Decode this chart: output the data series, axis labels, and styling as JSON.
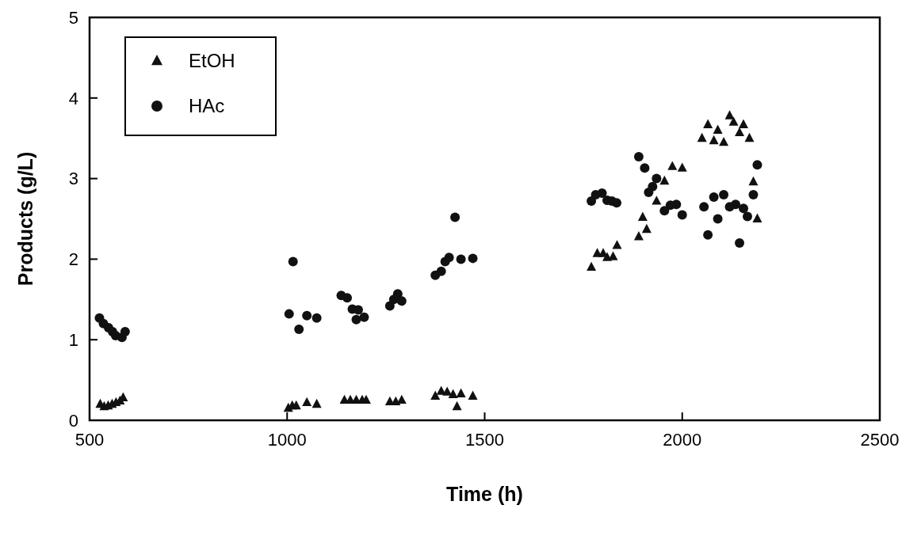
{
  "chart_data": {
    "type": "scatter",
    "xlabel": "Time  (h)",
    "ylabel": "Products  (g/L)",
    "xlim": [
      500,
      2500
    ],
    "ylim": [
      0,
      5
    ],
    "xticks": [
      500,
      1000,
      1500,
      2000,
      2500
    ],
    "yticks": [
      0,
      1,
      2,
      3,
      4,
      5
    ],
    "grid": false,
    "legend": "top left",
    "series": [
      {
        "name": "EtOH",
        "color": "#111111",
        "marker": "triangle",
        "x": [
          527,
          537,
          547,
          557,
          567,
          577,
          585,
          1003,
          1013,
          1023,
          1050,
          1075,
          1145,
          1160,
          1175,
          1190,
          1200,
          1260,
          1275,
          1290,
          1375,
          1390,
          1405,
          1420,
          1430,
          1440,
          1470,
          1770,
          1785,
          1800,
          1810,
          1825,
          1835,
          1890,
          1900,
          1910,
          1935,
          1955,
          1975,
          2000,
          2050,
          2065,
          2080,
          2090,
          2105,
          2120,
          2130,
          2145,
          2155,
          2170,
          2180,
          2190
        ],
        "values": [
          0.2,
          0.17,
          0.18,
          0.2,
          0.22,
          0.24,
          0.28,
          0.15,
          0.18,
          0.18,
          0.22,
          0.2,
          0.25,
          0.25,
          0.25,
          0.25,
          0.25,
          0.23,
          0.23,
          0.25,
          0.3,
          0.36,
          0.35,
          0.32,
          0.17,
          0.33,
          0.3,
          1.9,
          2.07,
          2.07,
          2.02,
          2.03,
          2.17,
          2.28,
          2.52,
          2.37,
          2.72,
          2.97,
          3.15,
          3.13,
          3.5,
          3.67,
          3.47,
          3.6,
          3.45,
          3.78,
          3.7,
          3.57,
          3.67,
          3.5,
          2.96,
          2.5
        ]
      },
      {
        "name": "HAc",
        "color": "#111111",
        "marker": "circle",
        "x": [
          525,
          535,
          548,
          558,
          566,
          582,
          590,
          1005,
          1015,
          1030,
          1050,
          1075,
          1137,
          1152,
          1165,
          1175,
          1180,
          1195,
          1260,
          1270,
          1280,
          1290,
          1375,
          1390,
          1400,
          1410,
          1425,
          1440,
          1470,
          1770,
          1781,
          1797,
          1810,
          1822,
          1834,
          1890,
          1905,
          1915,
          1925,
          1935,
          1955,
          1970,
          1985,
          2000,
          2055,
          2065,
          2080,
          2090,
          2105,
          2120,
          2135,
          2145,
          2155,
          2165,
          2180,
          2190
        ],
        "values": [
          1.27,
          1.2,
          1.15,
          1.1,
          1.05,
          1.03,
          1.1,
          1.32,
          1.97,
          1.13,
          1.3,
          1.27,
          1.55,
          1.52,
          1.38,
          1.25,
          1.37,
          1.28,
          1.42,
          1.5,
          1.57,
          1.48,
          1.8,
          1.85,
          1.97,
          2.02,
          2.52,
          2.0,
          2.01,
          2.72,
          2.8,
          2.82,
          2.73,
          2.72,
          2.7,
          3.27,
          3.13,
          2.83,
          2.9,
          3.0,
          2.6,
          2.67,
          2.68,
          2.55,
          2.65,
          2.3,
          2.77,
          2.5,
          2.8,
          2.65,
          2.68,
          2.2,
          2.63,
          2.53,
          2.8,
          3.17
        ]
      }
    ]
  }
}
